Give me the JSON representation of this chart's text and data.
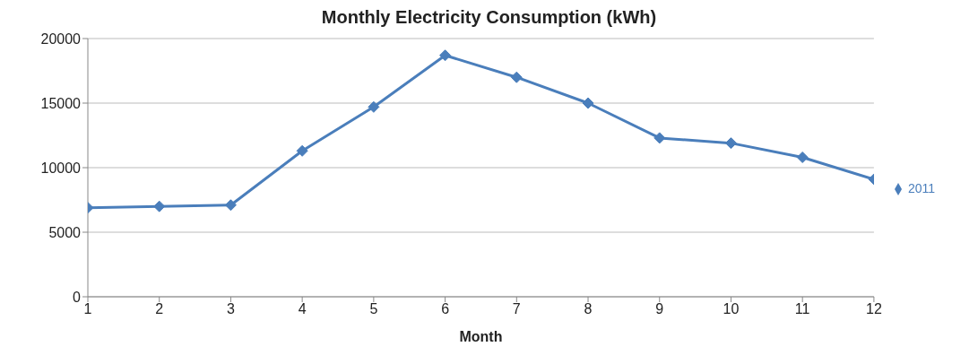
{
  "chart_data": {
    "type": "line",
    "title": "Monthly Electricity Consumption (kWh)",
    "xlabel": "Month",
    "x": [
      1,
      2,
      3,
      4,
      5,
      6,
      7,
      8,
      9,
      10,
      11,
      12
    ],
    "series": [
      {
        "name": "2011",
        "color": "#4a7ebb",
        "values": [
          6900,
          7000,
          7100,
          11300,
          14700,
          18700,
          17000,
          15000,
          12300,
          11900,
          10800,
          9100
        ]
      }
    ],
    "xlim": [
      1,
      12
    ],
    "xticks": [
      1,
      2,
      3,
      4,
      5,
      6,
      7,
      8,
      9,
      10,
      11,
      12
    ],
    "ylim": [
      0,
      20000
    ],
    "yticks": [
      0,
      5000,
      10000,
      15000,
      20000
    ],
    "grid": "y",
    "legend": "right",
    "marker": "diamond",
    "line_style": "solid"
  }
}
